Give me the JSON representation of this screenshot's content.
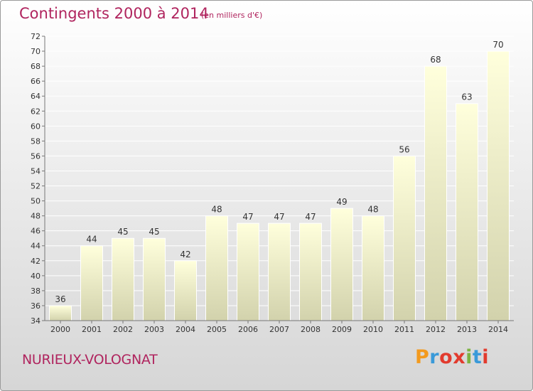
{
  "chart_data": {
    "type": "bar",
    "title": "Contingents 2000 à 2014",
    "subtitle": "(en milliers d'€)",
    "categories": [
      "2000",
      "2001",
      "2002",
      "2003",
      "2004",
      "2005",
      "2006",
      "2007",
      "2008",
      "2009",
      "2010",
      "2011",
      "2012",
      "2013",
      "2014"
    ],
    "values": [
      36,
      44,
      45,
      45,
      42,
      48,
      47,
      47,
      47,
      49,
      48,
      56,
      68,
      63,
      70
    ],
    "ylim": [
      34,
      72
    ],
    "yticks": [
      34,
      36,
      38,
      40,
      42,
      44,
      46,
      48,
      50,
      52,
      54,
      56,
      58,
      60,
      62,
      64,
      66,
      68,
      70,
      72
    ],
    "grid": true,
    "legend": "none",
    "colors": {
      "bar_top": "#ffffdc",
      "bar_bottom": "#d2d2ac",
      "title": "#b0245e"
    }
  },
  "footer": {
    "commune": "NURIEUX-VOLOGNAT"
  },
  "logo": {
    "letters": [
      "P",
      "r",
      "o",
      "x",
      "i",
      "t",
      "i"
    ],
    "colors": [
      "#f39a1e",
      "#3a9ad9",
      "#e23b2e",
      "#e23b2e",
      "#7cb342",
      "#3a9ad9",
      "#e23b2e"
    ]
  }
}
